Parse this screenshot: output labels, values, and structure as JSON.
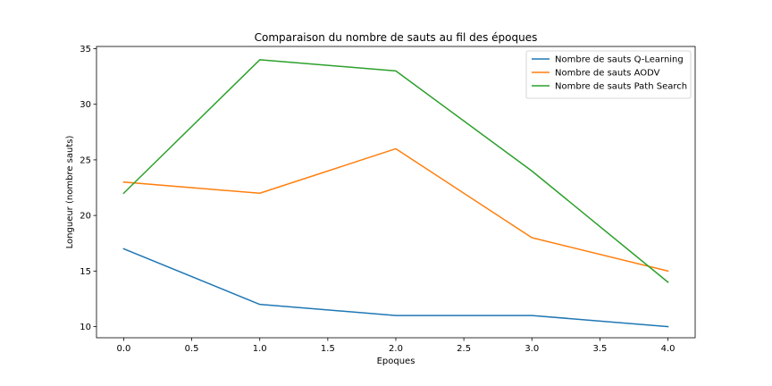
{
  "chart_data": {
    "type": "line",
    "title": "Comparaison du nombre de sauts au fil des époques",
    "xlabel": "Epoques",
    "ylabel": "Longueur (nombre sauts)",
    "x": [
      0,
      1,
      2,
      3,
      4
    ],
    "xlim": [
      -0.2,
      4.2
    ],
    "ylim": [
      9,
      35.2
    ],
    "xticks": [
      0.0,
      0.5,
      1.0,
      1.5,
      2.0,
      2.5,
      3.0,
      3.5,
      4.0
    ],
    "xtick_labels": [
      "0.0",
      "0.5",
      "1.0",
      "1.5",
      "2.0",
      "2.5",
      "3.0",
      "3.5",
      "4.0"
    ],
    "yticks": [
      10,
      15,
      20,
      25,
      30,
      35
    ],
    "ytick_labels": [
      "10",
      "15",
      "20",
      "25",
      "30",
      "35"
    ],
    "grid": false,
    "legend_position": "top-right",
    "series": [
      {
        "name": "Nombre de sauts Q-Learning",
        "color": "#1f77b4",
        "values": [
          17,
          12,
          11,
          11,
          10
        ]
      },
      {
        "name": "Nombre de sauts AODV",
        "color": "#ff7f0e",
        "values": [
          23,
          22,
          26,
          18,
          15
        ]
      },
      {
        "name": "Nombre de sauts Path Search",
        "color": "#2ca02c",
        "values": [
          22,
          34,
          33,
          24,
          14
        ]
      }
    ]
  }
}
